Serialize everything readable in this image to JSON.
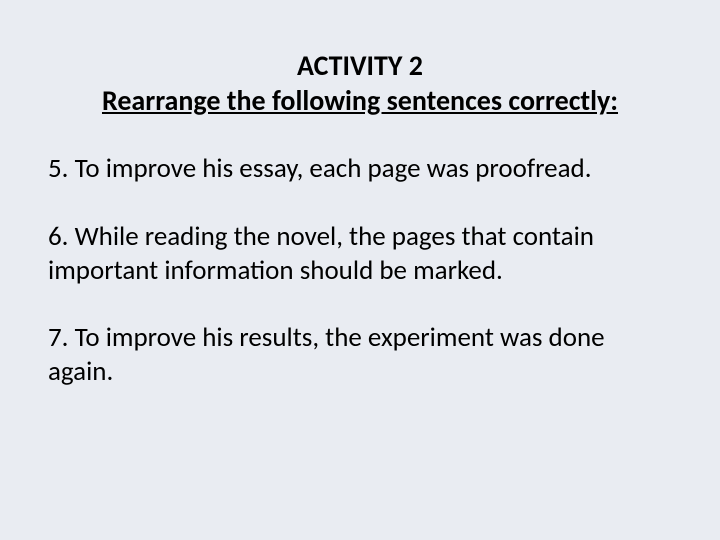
{
  "heading": {
    "title": "ACTIVITY 2",
    "subtitle": "Rearrange the following sentences correctly:"
  },
  "items": [
    {
      "number": "5.",
      "text": "To improve his essay, each page was proofread."
    },
    {
      "number": "6.",
      "text": "While reading the novel, the pages that contain important information should be marked."
    },
    {
      "number": "7.",
      "text": "To improve his results, the experiment was done again."
    }
  ],
  "style": {
    "background_color": "#e9ecf2",
    "text_color": "#000000",
    "heading_fontsize": 28,
    "body_fontsize": 27,
    "font_family": "Calibri"
  }
}
